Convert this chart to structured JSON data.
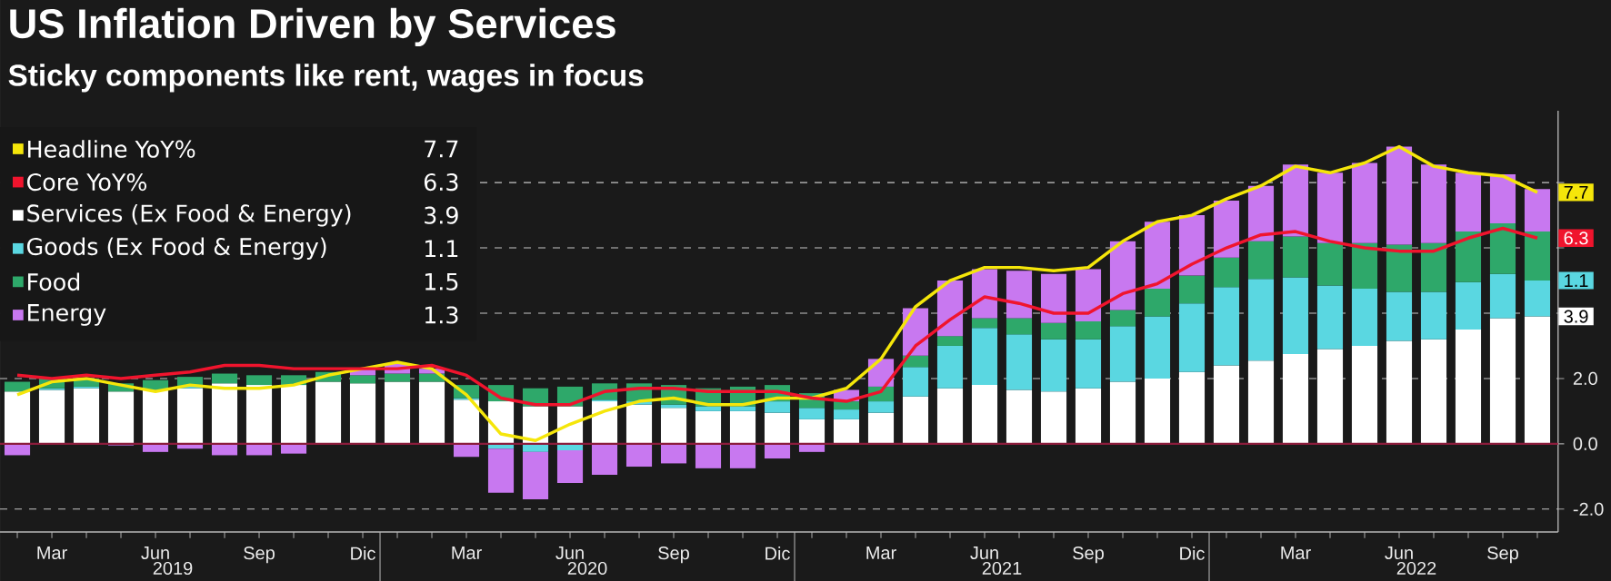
{
  "chart_data": {
    "type": "bar",
    "stacked": true,
    "title": "US Inflation Driven by Services",
    "subtitle": "Sticky components like rent, wages in focus",
    "categories": [
      null,
      "Mar",
      null,
      null,
      "Jun",
      null,
      null,
      "Sep",
      null,
      null,
      "Dic",
      null,
      null,
      "Mar",
      null,
      null,
      "Jun",
      null,
      null,
      "Sep",
      null,
      null,
      "Dic",
      null,
      null,
      "Mar",
      null,
      null,
      "Jun",
      null,
      null,
      "Sep",
      null,
      null,
      "Dic",
      null,
      null,
      "Mar",
      null,
      null,
      "Jun",
      null,
      null,
      "Sep",
      null
    ],
    "annotations": [
      "2019",
      "2020",
      "2021",
      "2022",
      {
        "text": "7.7",
        "y": 7.7
      },
      {
        "text": "6.3",
        "y": 6.3
      },
      {
        "text": "3.9",
        "y": 3.9
      },
      {
        "text": "1.1",
        "y": 5.0
      },
      "7.7",
      "6.3",
      "3.9",
      "1.1",
      "1.5",
      "1.3"
    ],
    "ylim": [
      -2.7,
      10.2
    ],
    "yticks": [
      {
        "value": -2,
        "label": "-2.0"
      },
      {
        "value": 0,
        "label": "0.0"
      },
      {
        "value": 2,
        "label": "2.0"
      },
      {
        "value": 4,
        "label": null
      },
      {
        "value": 6,
        "label": null
      },
      {
        "value": 8,
        "label": null
      }
    ],
    "grid": "y",
    "legend": "top left",
    "ref_lines": [
      {
        "axis": "y",
        "value": 0,
        "color": "#8c1c3c"
      }
    ],
    "series": [
      {
        "name": "Headline YoY%",
        "type": "line",
        "color": "#f5e60a",
        "values": [
          1.5,
          1.9,
          2.0,
          1.8,
          1.6,
          1.8,
          1.7,
          1.7,
          1.8,
          2.1,
          2.3,
          2.5,
          2.3,
          1.5,
          0.3,
          0.1,
          0.6,
          1.0,
          1.3,
          1.4,
          1.2,
          1.2,
          1.4,
          1.4,
          1.7,
          2.6,
          4.2,
          5.0,
          5.4,
          5.4,
          5.3,
          5.4,
          6.2,
          6.8,
          7.0,
          7.5,
          7.9,
          8.5,
          8.3,
          8.6,
          9.1,
          8.5,
          8.3,
          8.2,
          7.7
        ]
      },
      {
        "name": "Core YoY%",
        "type": "line",
        "color": "#f0142d",
        "values": [
          2.1,
          2.0,
          2.1,
          2.0,
          2.1,
          2.2,
          2.4,
          2.4,
          2.3,
          2.3,
          2.3,
          2.3,
          2.4,
          2.1,
          1.4,
          1.2,
          1.2,
          1.6,
          1.7,
          1.7,
          1.6,
          1.6,
          1.6,
          1.4,
          1.3,
          1.6,
          3.0,
          3.8,
          4.5,
          4.3,
          4.0,
          4.0,
          4.6,
          4.9,
          5.5,
          6.0,
          6.4,
          6.5,
          6.2,
          6.0,
          5.9,
          5.9,
          6.3,
          6.6,
          6.3
        ]
      },
      {
        "name": "Services (Ex Food & Energy)",
        "color": "#ffffff",
        "values": [
          1.6,
          1.65,
          1.7,
          1.6,
          1.65,
          1.7,
          1.85,
          1.8,
          1.8,
          1.9,
          1.85,
          1.9,
          1.9,
          1.35,
          1.3,
          1.15,
          1.15,
          1.3,
          1.2,
          1.1,
          1.0,
          1.0,
          0.95,
          0.75,
          0.75,
          0.95,
          1.45,
          1.7,
          1.8,
          1.65,
          1.6,
          1.7,
          1.9,
          2.0,
          2.2,
          2.4,
          2.55,
          2.75,
          2.9,
          3.0,
          3.15,
          3.2,
          3.5,
          3.85,
          3.9
        ]
      },
      {
        "name": "Goods (Ex Food & Energy)",
        "color": "#5ad7e1",
        "values": [
          null,
          0.05,
          0.05,
          0.0,
          null,
          0.05,
          0.0,
          0.0,
          0.0,
          0.0,
          0.0,
          0.0,
          0.0,
          0.05,
          -0.15,
          -0.25,
          -0.2,
          0.05,
          0.1,
          0.1,
          0.15,
          0.15,
          0.35,
          0.35,
          0.3,
          0.35,
          0.9,
          1.3,
          1.75,
          1.7,
          1.6,
          1.5,
          1.7,
          1.9,
          2.1,
          2.4,
          2.5,
          2.35,
          1.95,
          1.75,
          1.5,
          1.45,
          1.45,
          1.35,
          1.1
        ]
      },
      {
        "name": "Food",
        "color": "#2ea86a",
        "values": [
          0.3,
          0.3,
          0.25,
          0.25,
          0.3,
          0.3,
          0.3,
          0.3,
          0.3,
          0.3,
          0.25,
          0.25,
          0.25,
          0.4,
          0.5,
          0.55,
          0.6,
          0.5,
          0.55,
          0.6,
          0.55,
          0.6,
          0.5,
          0.45,
          0.25,
          0.45,
          0.35,
          0.3,
          0.3,
          0.5,
          0.5,
          0.55,
          0.5,
          0.85,
          0.85,
          0.9,
          1.15,
          1.25,
          1.3,
          1.4,
          1.45,
          1.5,
          1.55,
          1.55,
          1.5
        ]
      },
      {
        "name": "Energy",
        "color": "#c878f0",
        "values": [
          -0.35,
          0.0,
          null,
          -0.05,
          -0.25,
          -0.15,
          -0.35,
          -0.35,
          -0.3,
          0.0,
          0.2,
          0.3,
          0.15,
          -0.4,
          -1.35,
          -1.45,
          -1.0,
          -0.95,
          -0.7,
          -0.6,
          -0.75,
          -0.75,
          -0.45,
          -0.25,
          0.35,
          0.85,
          1.45,
          1.7,
          1.5,
          1.45,
          1.5,
          1.6,
          2.1,
          2.05,
          1.85,
          1.75,
          1.7,
          2.2,
          2.15,
          2.45,
          3.0,
          2.4,
          1.8,
          1.5,
          1.3
        ]
      }
    ]
  }
}
